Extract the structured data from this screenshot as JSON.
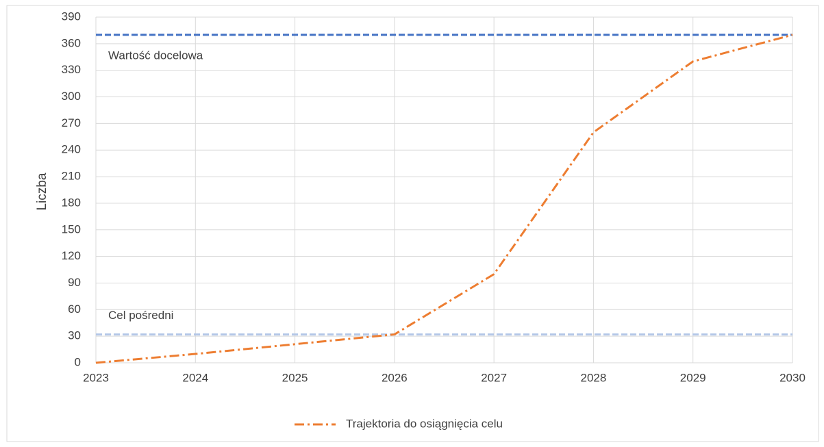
{
  "chart_data": {
    "type": "line",
    "y_label": "Liczba",
    "x": [
      2023,
      2024,
      2025,
      2026,
      2027,
      2028,
      2029,
      2030
    ],
    "series": [
      {
        "name": "Trajektoria do osiągnięcia celu",
        "color": "#ed7d31",
        "values": [
          0,
          10,
          21,
          32,
          100,
          260,
          340,
          370
        ]
      }
    ],
    "reference_lines": [
      {
        "label": "Wartość docelowa",
        "value": 370,
        "color": "#4472c4"
      },
      {
        "label": "Cel pośredni",
        "value": 32,
        "color": "#b4c7e7"
      }
    ],
    "xlim": [
      2023,
      2030
    ],
    "xticks": [
      2023,
      2024,
      2025,
      2026,
      2027,
      2028,
      2029,
      2030
    ],
    "ylim": [
      0,
      390
    ],
    "yticks": [
      0,
      30,
      60,
      90,
      120,
      150,
      180,
      210,
      240,
      270,
      300,
      330,
      360,
      390
    ],
    "grid": true,
    "legend": "bottom"
  }
}
